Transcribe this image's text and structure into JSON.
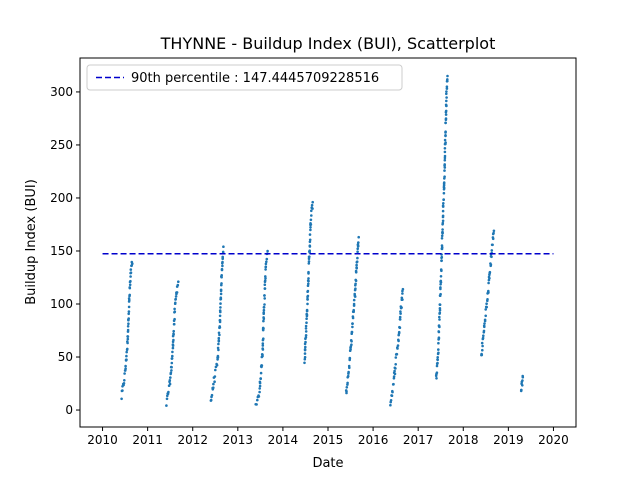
{
  "chart_data": {
    "type": "scatter",
    "title": "THYNNE - Buildup Index (BUI), Scatterplot",
    "xlabel": "Date",
    "ylabel": "Buildup Index (BUI)",
    "x_axis": "date-years",
    "xlim": [
      2009.5,
      2020.5
    ],
    "ylim": [
      -16,
      332
    ],
    "xticks": [
      2010,
      2011,
      2012,
      2013,
      2014,
      2015,
      2016,
      2017,
      2018,
      2019,
      2020
    ],
    "yticks": [
      0,
      50,
      100,
      150,
      200,
      250,
      300
    ],
    "grid": false,
    "legend_position": "top-left",
    "reference_line": {
      "label": "90th percentile : 147.4445709228516",
      "value": 147.4445709228516,
      "x_start": 2010,
      "x_end": 2020,
      "color": "#0000cc",
      "style": "dashed"
    },
    "series": [
      {
        "color": "#1f77b4",
        "segments": [
          {
            "x": [
              2010.42,
              2010.5,
              2010.55,
              2010.6,
              2010.63,
              2010.66
            ],
            "y": [
              12,
              35,
              62,
              110,
              132,
              138
            ]
          },
          {
            "x": [
              2011.42,
              2011.5,
              2011.55,
              2011.6,
              2011.64,
              2011.68
            ],
            "y": [
              6,
              28,
              52,
              92,
              112,
              121
            ]
          },
          {
            "x": [
              2012.4,
              2012.48,
              2012.55,
              2012.6,
              2012.64,
              2012.68
            ],
            "y": [
              8,
              30,
              45,
              80,
              125,
              154
            ]
          },
          {
            "x": [
              2013.4,
              2013.48,
              2013.55,
              2013.58,
              2013.62,
              2013.66
            ],
            "y": [
              2,
              18,
              55,
              95,
              135,
              150
            ]
          },
          {
            "x": [
              2014.48,
              2014.54,
              2014.58,
              2014.62,
              2014.66
            ],
            "y": [
              45,
              100,
              140,
              180,
              196
            ]
          },
          {
            "x": [
              2015.4,
              2015.48,
              2015.55,
              2015.6,
              2015.64,
              2015.68
            ],
            "y": [
              15,
              45,
              85,
              110,
              140,
              163
            ]
          },
          {
            "x": [
              2016.38,
              2016.45,
              2016.5,
              2016.56,
              2016.62,
              2016.66
            ],
            "y": [
              6,
              25,
              45,
              65,
              95,
              114
            ]
          },
          {
            "x": [
              2017.4,
              2017.45,
              2017.5,
              2017.55,
              2017.6,
              2017.63,
              2017.65
            ],
            "y": [
              30,
              60,
              120,
              180,
              250,
              300,
              315
            ]
          },
          {
            "x": [
              2018.4,
              2018.48,
              2018.55,
              2018.6,
              2018.64,
              2018.68
            ],
            "y": [
              50,
              85,
              110,
              135,
              155,
              169
            ]
          },
          {
            "x": [
              2019.28,
              2019.3,
              2019.32
            ],
            "y": [
              18,
              25,
              31
            ]
          }
        ]
      }
    ]
  }
}
